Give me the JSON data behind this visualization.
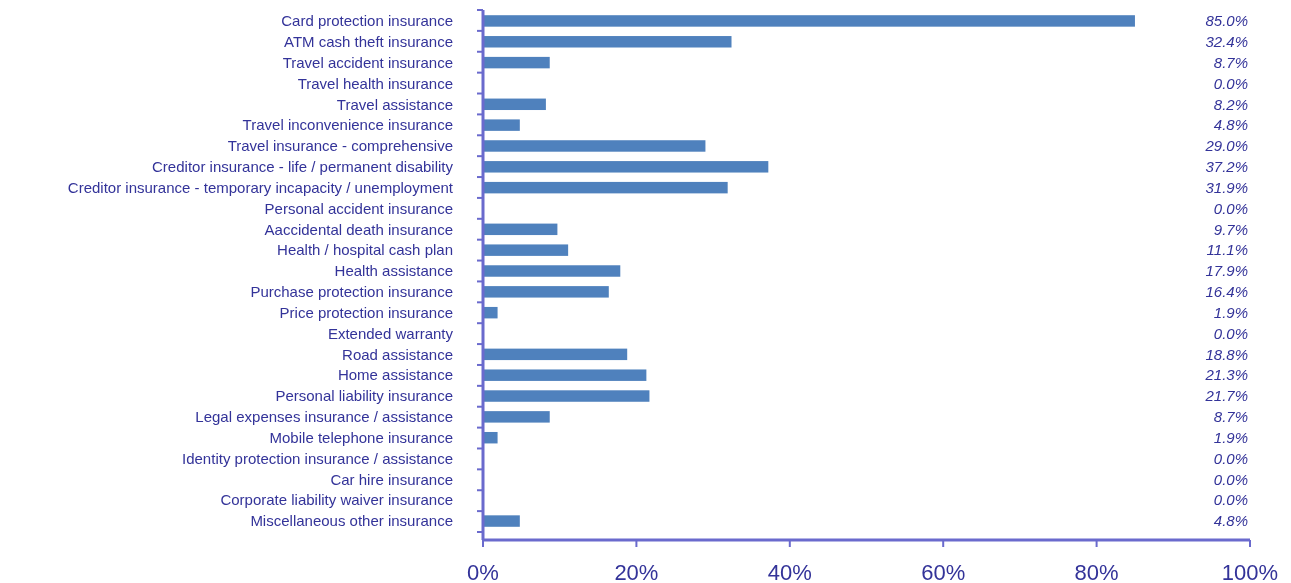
{
  "chart_data": {
    "type": "bar",
    "orientation": "horizontal",
    "categories": [
      "Card protection insurance",
      "ATM cash theft insurance",
      "Travel accident insurance",
      "Travel health insurance",
      "Travel assistance",
      "Travel inconvenience insurance",
      "Travel insurance - comprehensive",
      "Creditor insurance - life / permanent disability",
      "Creditor insurance - temporary incapacity / unemployment",
      "Personal accident insurance",
      "Aaccidental death insurance",
      "Health / hospital cash plan",
      "Health assistance",
      "Purchase protection insurance",
      "Price protection insurance",
      "Extended warranty",
      "Road assistance",
      "Home assistance",
      "Personal liability insurance",
      "Legal expenses insurance / assistance",
      "Mobile telephone insurance",
      "Identity protection insurance / assistance",
      "Car hire insurance",
      "Corporate liability waiver insurance",
      "Miscellaneous other insurance"
    ],
    "values": [
      85.0,
      32.4,
      8.7,
      0.0,
      8.2,
      4.8,
      29.0,
      37.2,
      31.9,
      0.0,
      9.7,
      11.1,
      17.9,
      16.4,
      1.9,
      0.0,
      18.8,
      21.3,
      21.7,
      8.7,
      1.9,
      0.0,
      0.0,
      0.0,
      4.8
    ],
    "value_labels": [
      "85.0%",
      "32.4%",
      "8.7%",
      "0.0%",
      "8.2%",
      "4.8%",
      "29.0%",
      "37.2%",
      "31.9%",
      "0.0%",
      "9.7%",
      "11.1%",
      "17.9%",
      "16.4%",
      "1.9%",
      "0.0%",
      "18.8%",
      "21.3%",
      "21.7%",
      "8.7%",
      "1.9%",
      "0.0%",
      "0.0%",
      "0.0%",
      "4.8%"
    ],
    "color": "#4f81bd",
    "xlim": [
      0,
      100
    ],
    "xticks": [
      {
        "value": 0,
        "label": "0%"
      },
      {
        "value": 20,
        "label": "20%"
      },
      {
        "value": 40,
        "label": "40%"
      },
      {
        "value": 60,
        "label": "60%"
      },
      {
        "value": 80,
        "label": "80%"
      },
      {
        "value": 100,
        "label": "100%"
      }
    ]
  }
}
